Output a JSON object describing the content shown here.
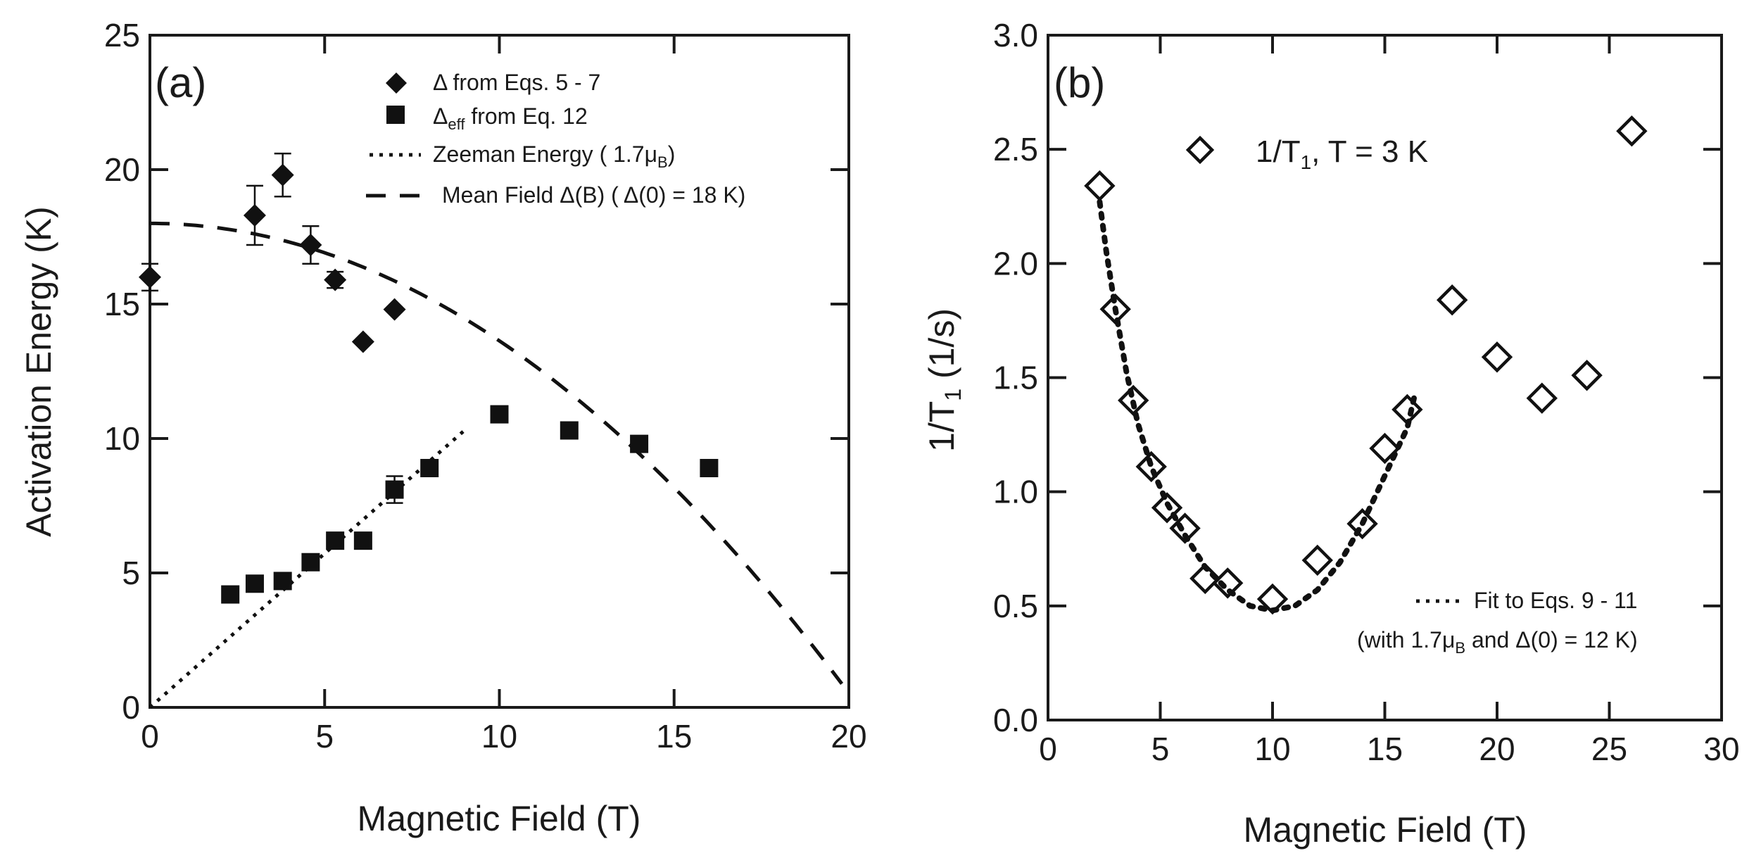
{
  "chart_data": [
    {
      "type": "scatter",
      "panel_label": "(a)",
      "xlabel": "Magnetic Field (T)",
      "ylabel": "Activation Energy (K)",
      "xlim": [
        0,
        20
      ],
      "ylim": [
        0,
        25
      ],
      "xticks": [
        0,
        5,
        10,
        15,
        20
      ],
      "yticks": [
        0,
        5,
        10,
        15,
        20,
        25
      ],
      "series": [
        {
          "name": "Δ from Eqs. 5 - 7",
          "marker": "diamond-filled",
          "points": [
            {
              "x": 0.0,
              "y": 16.0,
              "err": 0.5
            },
            {
              "x": 3.0,
              "y": 18.3,
              "err": 1.1
            },
            {
              "x": 3.8,
              "y": 19.8,
              "err": 0.8
            },
            {
              "x": 4.6,
              "y": 17.2,
              "err": 0.7
            },
            {
              "x": 5.3,
              "y": 15.9,
              "err": 0.3
            },
            {
              "x": 6.1,
              "y": 13.6,
              "err": 0
            },
            {
              "x": 7.0,
              "y": 14.8,
              "err": 0
            }
          ]
        },
        {
          "name": "Δeff from Eq. 12",
          "marker": "square-filled",
          "points": [
            {
              "x": 2.3,
              "y": 4.2,
              "err": 0
            },
            {
              "x": 3.0,
              "y": 4.6,
              "err": 0
            },
            {
              "x": 3.8,
              "y": 4.7,
              "err": 0
            },
            {
              "x": 4.6,
              "y": 5.4,
              "err": 0
            },
            {
              "x": 5.3,
              "y": 6.2,
              "err": 0
            },
            {
              "x": 6.1,
              "y": 6.2,
              "err": 0
            },
            {
              "x": 7.0,
              "y": 8.1,
              "err": 0.5
            },
            {
              "x": 8.0,
              "y": 8.9,
              "err": 0
            },
            {
              "x": 10.0,
              "y": 10.9,
              "err": 0
            },
            {
              "x": 12.0,
              "y": 10.3,
              "err": 0
            },
            {
              "x": 14.0,
              "y": 9.8,
              "err": 0
            },
            {
              "x": 16.0,
              "y": 8.9,
              "err": 0
            }
          ]
        },
        {
          "name": "Zeeman Energy ( 1.7μB)",
          "style": "dotted",
          "line": [
            [
              0,
              0
            ],
            [
              9.0,
              10.3
            ]
          ]
        },
        {
          "name": "Mean Field Δ(B) ( Δ(0) = 18 K)",
          "style": "dashed",
          "function": "meanfield",
          "delta0": 18,
          "bc": 20.3,
          "xrange": [
            0,
            19.8
          ]
        }
      ],
      "legend": [
        {
          "symbol": "diamond",
          "text": "Δ  from Eqs. 5 - 7"
        },
        {
          "symbol": "square",
          "base": "Δ",
          "sub": "eff",
          "rest": " from Eq. 12"
        },
        {
          "symbol": "dotted",
          "text": "Zeeman Energy ( 1.7μ",
          "sub": "B",
          "rest": ")"
        },
        {
          "symbol": "dashed",
          "text": "Mean Field Δ(B) ( Δ(0) = 18 K)"
        }
      ]
    },
    {
      "type": "scatter",
      "panel_label": "(b)",
      "xlabel": "Magnetic Field (T)",
      "ylabel_base": "1/T",
      "ylabel_sub": "1",
      "ylabel_rest": " (1/s)",
      "xlim": [
        0,
        30
      ],
      "ylim": [
        0.0,
        3.0
      ],
      "xticks": [
        0,
        5,
        10,
        15,
        20,
        25,
        30
      ],
      "yticks": [
        0.0,
        0.5,
        1.0,
        1.5,
        2.0,
        2.5,
        3.0
      ],
      "series": [
        {
          "name": "1/T1, T = 3 K",
          "marker": "diamond-open",
          "points": [
            {
              "x": 2.3,
              "y": 2.34
            },
            {
              "x": 3.0,
              "y": 1.8
            },
            {
              "x": 3.8,
              "y": 1.4
            },
            {
              "x": 4.6,
              "y": 1.11
            },
            {
              "x": 5.3,
              "y": 0.93
            },
            {
              "x": 6.1,
              "y": 0.84
            },
            {
              "x": 7.0,
              "y": 0.62
            },
            {
              "x": 8.0,
              "y": 0.6
            },
            {
              "x": 10.0,
              "y": 0.53
            },
            {
              "x": 12.0,
              "y": 0.7
            },
            {
              "x": 14.0,
              "y": 0.86
            },
            {
              "x": 15.0,
              "y": 1.19
            },
            {
              "x": 16.0,
              "y": 1.36
            },
            {
              "x": 18.0,
              "y": 1.84
            },
            {
              "x": 20.0,
              "y": 1.59
            },
            {
              "x": 22.0,
              "y": 1.41
            },
            {
              "x": 24.0,
              "y": 1.51
            },
            {
              "x": 26.0,
              "y": 2.58
            }
          ]
        },
        {
          "name": "Fit to Eqs. 9 - 11",
          "style": "dotted",
          "curve": [
            [
              2.3,
              2.27
            ],
            [
              2.6,
              2.05
            ],
            [
              3.0,
              1.8
            ],
            [
              3.5,
              1.52
            ],
            [
              4.0,
              1.3
            ],
            [
              4.6,
              1.11
            ],
            [
              5.3,
              0.95
            ],
            [
              6.1,
              0.81
            ],
            [
              7.0,
              0.67
            ],
            [
              8.0,
              0.57
            ],
            [
              9.0,
              0.5
            ],
            [
              10.0,
              0.48
            ],
            [
              11.0,
              0.5
            ],
            [
              12.0,
              0.57
            ],
            [
              13.0,
              0.69
            ],
            [
              14.0,
              0.86
            ],
            [
              15.0,
              1.07
            ],
            [
              16.0,
              1.28
            ],
            [
              16.3,
              1.41
            ]
          ]
        }
      ],
      "legend": [
        {
          "symbol": "diamond-open",
          "text": "1/T",
          "sub": "1",
          "rest": ",  T = 3 K"
        },
        {
          "symbol": "dotted",
          "text": "Fit to  Eqs. 9 - 11"
        },
        {
          "text": "(with 1.7μ",
          "sub": "B",
          "rest": " and Δ(0) = 12 K)"
        }
      ]
    }
  ]
}
